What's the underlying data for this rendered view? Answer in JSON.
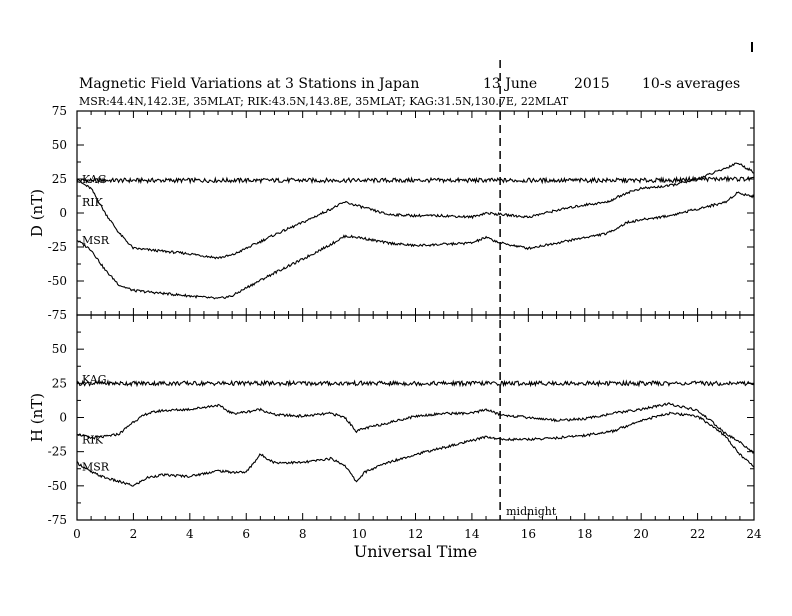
{
  "header": {
    "title": "Magnetic Field Variations at 3 Stations in Japan",
    "date": "13 June",
    "year": "2015",
    "averaging": "10-s averages",
    "stations_line": "MSR:44.4N,142.3E, 35MLAT;  RIK:43.5N,143.8E, 35MLAT;  KAG:31.5N,130.7E, 22MLAT"
  },
  "chart_data": [
    {
      "type": "line",
      "ylabel": "D (nT)",
      "xlabel": "",
      "xlim": [
        0,
        24
      ],
      "ylim": [
        -75,
        75
      ],
      "yticks": [
        -75,
        -50,
        -25,
        0,
        25,
        50,
        75
      ],
      "xticks": [
        0,
        2,
        4,
        6,
        8,
        10,
        12,
        14,
        16,
        18,
        20,
        22,
        24
      ],
      "grid": false,
      "series": [
        {
          "name": "KAG",
          "x": [
            0,
            1,
            2,
            3,
            4,
            5,
            6,
            7,
            8,
            9,
            10,
            11,
            12,
            13,
            14,
            15,
            16,
            17,
            18,
            19,
            20,
            21,
            22,
            23,
            24
          ],
          "y": [
            24,
            24,
            24,
            24,
            24,
            24,
            24,
            24,
            24,
            24,
            24,
            24,
            24,
            24,
            24,
            24,
            24,
            24,
            24,
            24,
            24,
            24,
            25,
            25,
            25
          ]
        },
        {
          "name": "RIK",
          "x": [
            0,
            0.5,
            1,
            1.5,
            2,
            3,
            4,
            5,
            5.5,
            6,
            7,
            8,
            9,
            9.5,
            10,
            11,
            12,
            13,
            14,
            14.5,
            15,
            16,
            17,
            18,
            18.8,
            19.5,
            20,
            21,
            22,
            23,
            23.4,
            24
          ],
          "y": [
            24,
            18,
            0,
            -15,
            -26,
            -28,
            -30,
            -33,
            -31,
            -26,
            -16,
            -7,
            3,
            8,
            5,
            -1,
            -2,
            -2,
            -3,
            0,
            -1,
            -3,
            2,
            6,
            8,
            15,
            18,
            20,
            25,
            33,
            37,
            30
          ]
        },
        {
          "name": "MSR",
          "x": [
            0,
            0.5,
            1,
            1.5,
            2,
            3,
            4,
            5,
            5.5,
            6,
            7,
            8,
            9,
            9.5,
            10,
            11,
            12,
            13,
            14,
            14.5,
            15,
            16,
            17,
            18,
            18.8,
            19.5,
            20,
            21,
            22,
            23,
            23.4,
            24
          ],
          "y": [
            -20,
            -27,
            -42,
            -53,
            -57,
            -59,
            -61,
            -63,
            -61,
            -55,
            -44,
            -34,
            -23,
            -17,
            -18,
            -22,
            -24,
            -23,
            -22,
            -18,
            -22,
            -26,
            -22,
            -18,
            -15,
            -7,
            -5,
            -2,
            3,
            8,
            15,
            12
          ]
        }
      ],
      "annotations": [
        "KAG",
        "RIK",
        "MSR"
      ]
    },
    {
      "type": "line",
      "ylabel": "H (nT)",
      "xlabel": "Universal Time",
      "xlim": [
        0,
        24
      ],
      "ylim": [
        -75,
        75
      ],
      "yticks": [
        -75,
        -50,
        -25,
        0,
        25,
        50
      ],
      "xticks": [
        0,
        2,
        4,
        6,
        8,
        10,
        12,
        14,
        16,
        18,
        20,
        22,
        24
      ],
      "grid": false,
      "series": [
        {
          "name": "KAG",
          "x": [
            0,
            1,
            2,
            3,
            4,
            5,
            6,
            7,
            8,
            9,
            10,
            11,
            12,
            13,
            14,
            15,
            16,
            17,
            18,
            19,
            20,
            21,
            22,
            23,
            24
          ],
          "y": [
            25,
            25,
            25,
            25,
            25,
            25,
            25,
            25,
            25,
            25,
            25,
            25,
            25,
            25,
            25,
            25,
            25,
            25,
            25,
            25,
            25,
            25,
            25,
            25,
            25
          ]
        },
        {
          "name": "RIK",
          "x": [
            0,
            0.5,
            1,
            1.5,
            2,
            2.5,
            3,
            4,
            5,
            5.5,
            6,
            6.5,
            7,
            8,
            9,
            9.5,
            9.9,
            10.2,
            11,
            12,
            13,
            14,
            14.5,
            15,
            16,
            17,
            18,
            19,
            20,
            21,
            22,
            22.5,
            23,
            23.5,
            24
          ],
          "y": [
            -12,
            -15,
            -14,
            -12,
            -3,
            3,
            5,
            6,
            9,
            3,
            4,
            6,
            2,
            1,
            3,
            0,
            -10,
            -8,
            -4,
            1,
            3,
            3,
            6,
            2,
            0,
            -2,
            -1,
            3,
            6,
            10,
            5,
            -3,
            -12,
            -18,
            -26
          ]
        },
        {
          "name": "MSR",
          "x": [
            0,
            0.5,
            1,
            1.5,
            2,
            2.5,
            3,
            4,
            5,
            5.5,
            6,
            6.5,
            7,
            8,
            9,
            9.5,
            9.9,
            10.2,
            11,
            12,
            13,
            14,
            14.5,
            15,
            16,
            17,
            18,
            19,
            20,
            21,
            22,
            22.5,
            23,
            23.5,
            24
          ],
          "y": [
            -33,
            -40,
            -44,
            -47,
            -50,
            -44,
            -42,
            -43,
            -39,
            -40,
            -40,
            -27,
            -33,
            -33,
            -30,
            -35,
            -47,
            -40,
            -33,
            -27,
            -22,
            -17,
            -14,
            -16,
            -16,
            -15,
            -13,
            -10,
            -2,
            3,
            1,
            -6,
            -14,
            -27,
            -36
          ]
        }
      ],
      "annotations": [
        "KAG",
        "RIK",
        "MSR"
      ]
    }
  ],
  "marker": {
    "x": 15,
    "label": "midnight"
  }
}
